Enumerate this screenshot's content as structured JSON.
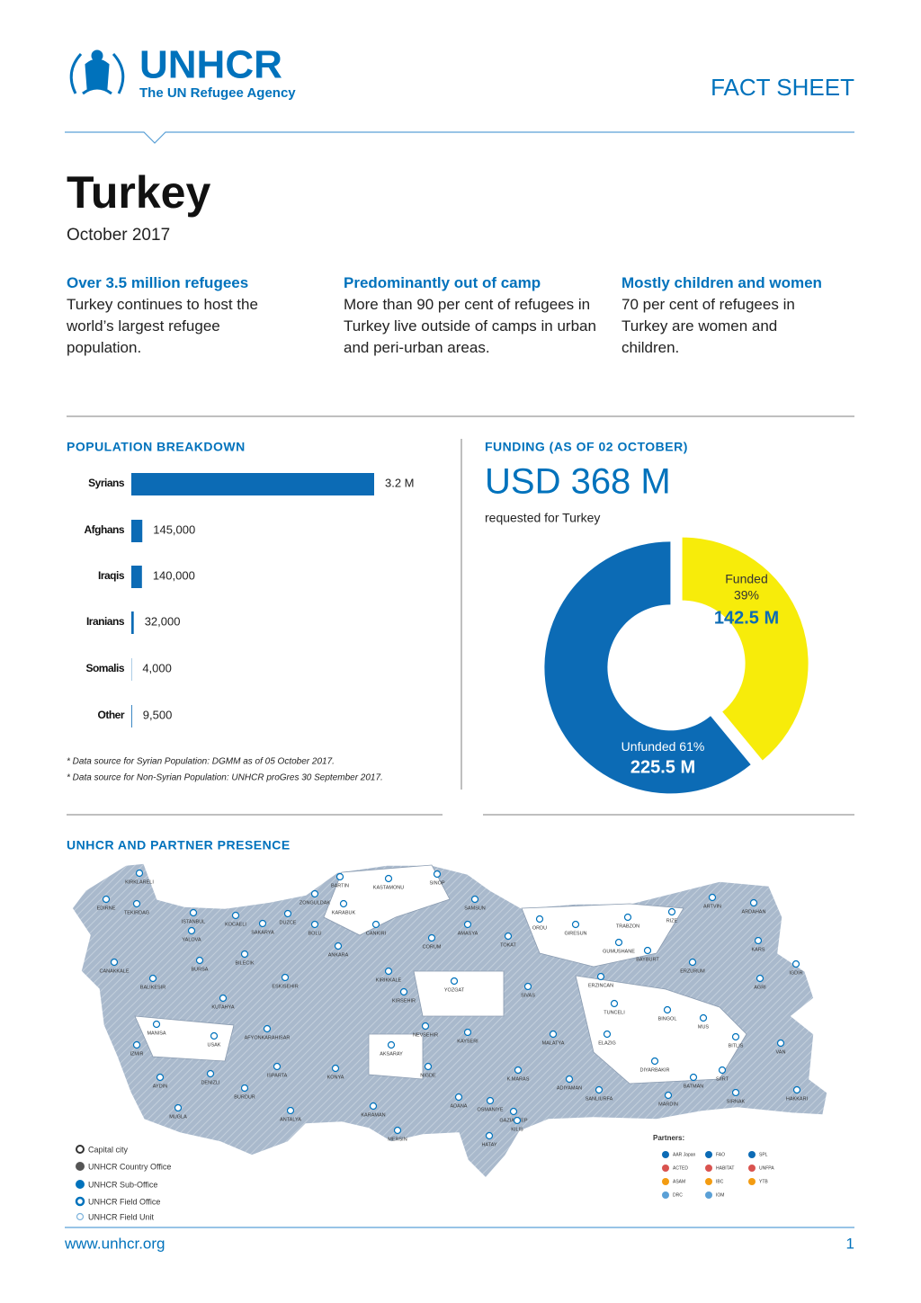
{
  "header": {
    "logo": "UNHCR",
    "tagline": "The UN Refugee Agency",
    "doc_type": "FACT SHEET",
    "title": "Turkey",
    "date": "October 2017"
  },
  "highlights": [
    {
      "heading": "Over 3.5 million refugees",
      "text": "Turkey continues to host the world’s largest refugee population."
    },
    {
      "heading": "Predominantly out of camp",
      "text": "More than 90 per cent of refugees in Turkey live outside of camps in urban and peri-urban areas."
    },
    {
      "heading": "Mostly children and women",
      "text": "70 per cent of refugees in Turkey are women and children."
    }
  ],
  "chart_data": [
    {
      "type": "bar",
      "title": "POPULATION BREAKDOWN",
      "categories": [
        "Syrians",
        "Afghans",
        "Iraqis",
        "Iranians",
        "Somalis",
        "Other"
      ],
      "values": [
        3200000,
        145000,
        140000,
        32000,
        4000,
        9500
      ],
      "value_labels": [
        "3.2 M",
        "145,000",
        "140,000",
        "32,000",
        "4,000",
        "9,500"
      ],
      "color": "#0c6bb5",
      "notes": [
        "* Data source for Syrian Population: DGMM as of 05 October 2017.",
        "* Data source for Non-Syrian Population: UNHCR proGres 30 September 2017."
      ]
    },
    {
      "type": "pie",
      "title": "FUNDING (AS OF 02 OCTOBER)",
      "total_label": "USD 368 M",
      "subtitle": "requested for Turkey",
      "categories": [
        "Funded",
        "Unfunded"
      ],
      "values": [
        39,
        61
      ],
      "value_labels": [
        "39%",
        "61%"
      ],
      "amount_labels": [
        "142.5 M",
        "225.5 M"
      ],
      "colors": [
        "#f7ec0a",
        "#0c6bb5"
      ]
    }
  ],
  "map": {
    "title": "UNHCR AND PARTNER PRESENCE",
    "labels": [
      "KIRKLARELI",
      "EDIRNE",
      "TEKIRDAG",
      "ISTANBUL",
      "KOCAELI",
      "YALOVA",
      "SAKARYA",
      "DUZCE",
      "ZONGULDAK",
      "BARTIN",
      "KASTAMONU",
      "SINOP",
      "BOLU",
      "KARABUK",
      "CANKIRI",
      "SAMSUN",
      "CORUM",
      "AMASYA",
      "TOKAT",
      "ORDU",
      "GIRESUN",
      "TRABZON",
      "RIZE",
      "ARTVIN",
      "ARDAHAN",
      "KARS",
      "GUMUSHANE",
      "BAYBURT",
      "ERZURUM",
      "AGRI",
      "IGDIR",
      "CANAKKALE",
      "BALIKESIR",
      "BURSA",
      "BILECIK",
      "ESKISEHIR",
      "ANKARA",
      "KIRIKKALE",
      "YOZGAT",
      "SIVAS",
      "ERZINCAN",
      "KIRSEHIR",
      "KUTAHYA",
      "TUNCELI",
      "BINGOL",
      "MUS",
      "MANISA",
      "USAK",
      "AFYONKARAHISAR",
      "NEVSEHIR",
      "KAYSERI",
      "MALATYA",
      "ELAZIG",
      "BITLIS",
      "VAN",
      "IZMIR",
      "AKSARAY",
      "DIYARBAKIR",
      "AYDIN",
      "DENIZLI",
      "ISPARTA",
      "KONYA",
      "NIGDE",
      "K.MARAS",
      "ADIYAMAN",
      "BATMAN",
      "SIIRT",
      "BURDUR",
      "MUGLA",
      "ANTALYA",
      "KARAMAN",
      "ADANA",
      "OSMANIYE",
      "SANLIURFA",
      "SIRNAK",
      "HAKKARI",
      "GAZIANTEP",
      "KILIS",
      "MERSIN",
      "HATAY",
      "MARDIN"
    ],
    "legend": [
      "Capital city",
      "UNHCR Country Office",
      "UNHCR Sub-Office",
      "UNHCR Field Office",
      "UNHCR Field Unit"
    ],
    "partners_title": "Partners:",
    "partners": [
      "AAR Japan",
      "ACTED",
      "ASAM",
      "DRC",
      "FAO",
      "HABITAT",
      "IBC",
      "IOM",
      "SPL",
      "UNFPA",
      "YTB"
    ]
  },
  "footer": {
    "url": "www.unhcr.org",
    "page": "1"
  }
}
